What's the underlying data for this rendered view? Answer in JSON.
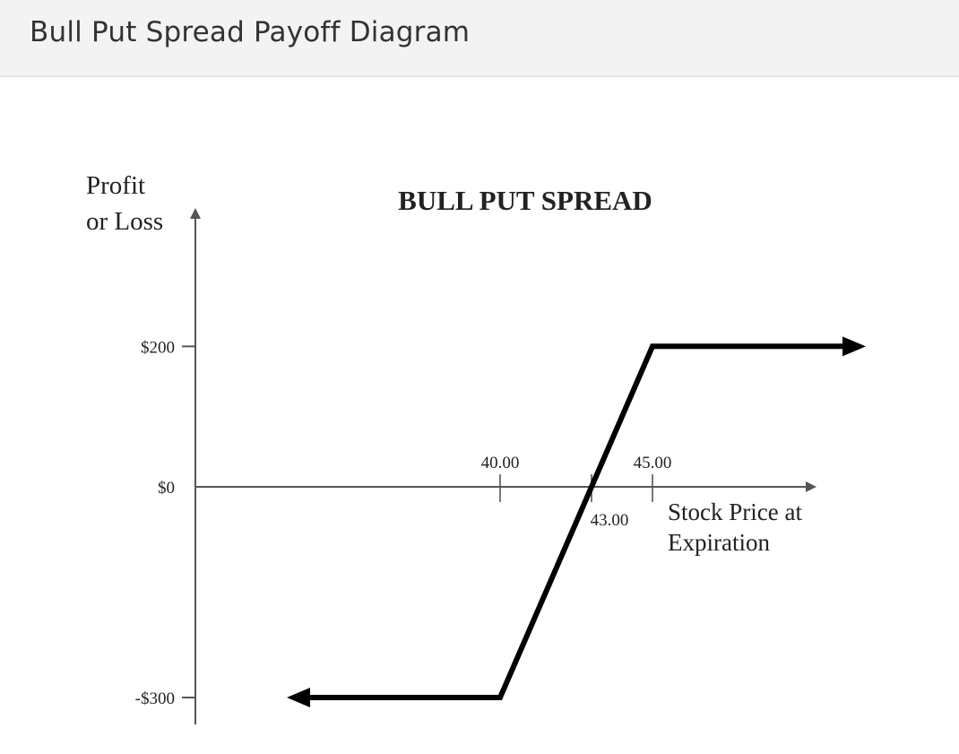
{
  "page": {
    "title": "Bull Put Spread Payoff Diagram"
  },
  "colors": {
    "axis": "#555555",
    "line": "#000000",
    "header_bg": "#f3f3f3"
  },
  "chart_data": {
    "type": "line",
    "title": "BULL PUT SPREAD",
    "ylabel": [
      "Profit",
      "or Loss"
    ],
    "xlabel": [
      "Stock Price at",
      "Expiration"
    ],
    "yticks": [
      {
        "value": 200,
        "label": "$200"
      },
      {
        "value": 0,
        "label": "$0"
      },
      {
        "value": -300,
        "label": "-$300"
      }
    ],
    "xticks": [
      {
        "value": 40,
        "label": "40.00",
        "position": "above"
      },
      {
        "value": 43,
        "label": "43.00",
        "position": "below"
      },
      {
        "value": 45,
        "label": "45.00",
        "position": "above"
      }
    ],
    "xlim": [
      30,
      52
    ],
    "ylim": [
      -300,
      200
    ],
    "series": [
      {
        "x": [
          33,
          40,
          43,
          45,
          52
        ],
        "y": [
          -300,
          -300,
          0,
          200,
          200
        ]
      }
    ],
    "arrows": [
      "left",
      "right"
    ],
    "grid": false,
    "legend": "none"
  }
}
